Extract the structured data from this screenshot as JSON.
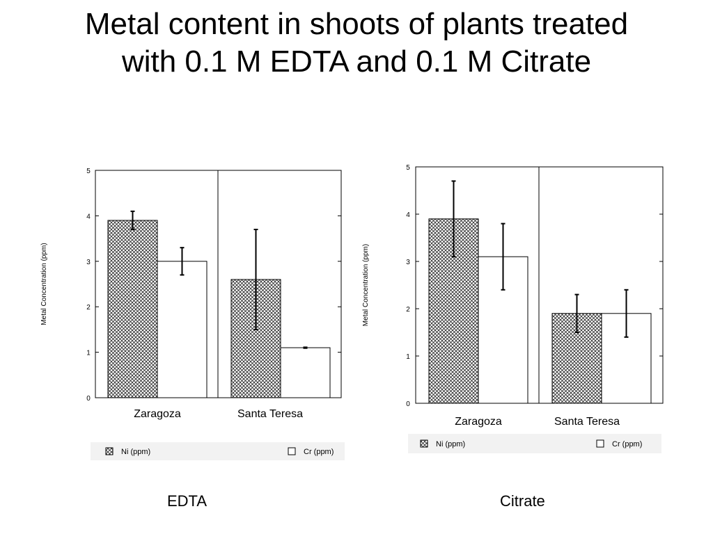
{
  "slide": {
    "title_line1": "Metal content in shoots of plants treated",
    "title_line2": "with 0.1 M EDTA  and 0.1 M Citrate"
  },
  "colors": {
    "frame": "#000000",
    "ni_fill_pattern": "crosshatch",
    "cr_fill": "#ffffff",
    "legend_background": "#f2f2f2"
  },
  "chart_data": [
    {
      "type": "bar",
      "caption": "EDTA",
      "ylabel": "Metal Concentration (ppm)",
      "ylim": [
        0,
        5
      ],
      "yticks": [
        "0",
        "1",
        "2",
        "3",
        "4",
        "5"
      ],
      "categories": [
        "Zaragoza",
        "Santa Teresa"
      ],
      "series": [
        {
          "name": "Ni (ppm)",
          "values": [
            3.9,
            2.6
          ],
          "errors": [
            0.2,
            1.1
          ]
        },
        {
          "name": "Cr (ppm)",
          "values": [
            3.0,
            1.1
          ],
          "errors": [
            0.3,
            0.01
          ]
        }
      ],
      "legend_position": "bottom"
    },
    {
      "type": "bar",
      "caption": "Citrate",
      "ylabel": "Metal Concentration (ppm)",
      "ylim": [
        0,
        5
      ],
      "yticks": [
        "0",
        "1",
        "2",
        "3",
        "4",
        "5"
      ],
      "categories": [
        "Zaragoza",
        "Santa Teresa"
      ],
      "series": [
        {
          "name": "Ni (ppm)",
          "values": [
            3.9,
            1.9
          ],
          "errors": [
            0.8,
            0.4
          ]
        },
        {
          "name": "Cr (ppm)",
          "values": [
            3.1,
            1.9
          ],
          "errors": [
            0.7,
            0.5
          ]
        }
      ],
      "legend_position": "bottom"
    }
  ]
}
